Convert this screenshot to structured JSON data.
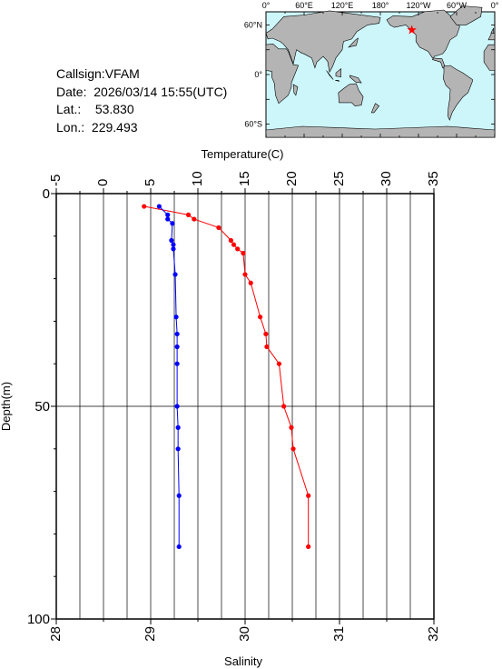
{
  "info": {
    "callsign_label": "Callsign:",
    "callsign": "VFAM",
    "date_label": "Date:",
    "date": "2026/03/14 15:55(UTC)",
    "lat_label": "Lat.:",
    "lat": "53.830",
    "lon_label": "Lon.:",
    "lon": "229.493"
  },
  "map": {
    "ocean_color": "#cdf6fb",
    "land_color": "#b4b4b4",
    "marker_color": "#ff0000",
    "marker_icon": "star-icon",
    "top_labels": [
      "0°",
      "60°E",
      "120°E",
      "180°",
      "120°W",
      "60°W",
      "0°"
    ],
    "left_labels": [
      "60°N",
      "0°",
      "60°S"
    ]
  },
  "chart_data": {
    "type": "line",
    "top_axis": {
      "label": "Temperature(C)",
      "range": [
        -5,
        35
      ],
      "ticks": [
        "-5",
        "0",
        "5",
        "10",
        "15",
        "20",
        "25",
        "30",
        "35"
      ]
    },
    "bottom_axis": {
      "label": "Salinity",
      "range": [
        28,
        32
      ],
      "ticks": [
        "28",
        "29",
        "30",
        "31",
        "32"
      ]
    },
    "y_axis": {
      "label": "Depth(m)",
      "range": [
        0,
        100
      ],
      "inverted": true,
      "ticks": [
        "0",
        "50",
        "100"
      ]
    },
    "grid": true,
    "series": [
      {
        "color": "#ff0000",
        "axis": "top",
        "points": [
          [
            4.3,
            3
          ],
          [
            9.0,
            5
          ],
          [
            9.6,
            6
          ],
          [
            12.2,
            8
          ],
          [
            13.5,
            11
          ],
          [
            13.8,
            12
          ],
          [
            14.2,
            13
          ],
          [
            14.8,
            14
          ],
          [
            15.0,
            19
          ],
          [
            15.6,
            21
          ],
          [
            16.6,
            29
          ],
          [
            17.2,
            33
          ],
          [
            17.3,
            36
          ],
          [
            18.6,
            40
          ],
          [
            19.1,
            50
          ],
          [
            19.9,
            55
          ],
          [
            20.1,
            60
          ],
          [
            21.7,
            71
          ],
          [
            21.7,
            83
          ]
        ]
      },
      {
        "color": "#0000ff",
        "axis": "bottom",
        "points": [
          [
            29.09,
            3
          ],
          [
            29.18,
            5
          ],
          [
            29.18,
            6
          ],
          [
            29.23,
            7
          ],
          [
            29.22,
            11
          ],
          [
            29.24,
            12
          ],
          [
            29.24,
            13
          ],
          [
            29.26,
            19
          ],
          [
            29.27,
            29
          ],
          [
            29.28,
            33
          ],
          [
            29.28,
            36
          ],
          [
            29.28,
            40
          ],
          [
            29.28,
            50
          ],
          [
            29.29,
            55
          ],
          [
            29.29,
            60
          ],
          [
            29.3,
            71
          ],
          [
            29.3,
            83
          ]
        ]
      }
    ]
  }
}
